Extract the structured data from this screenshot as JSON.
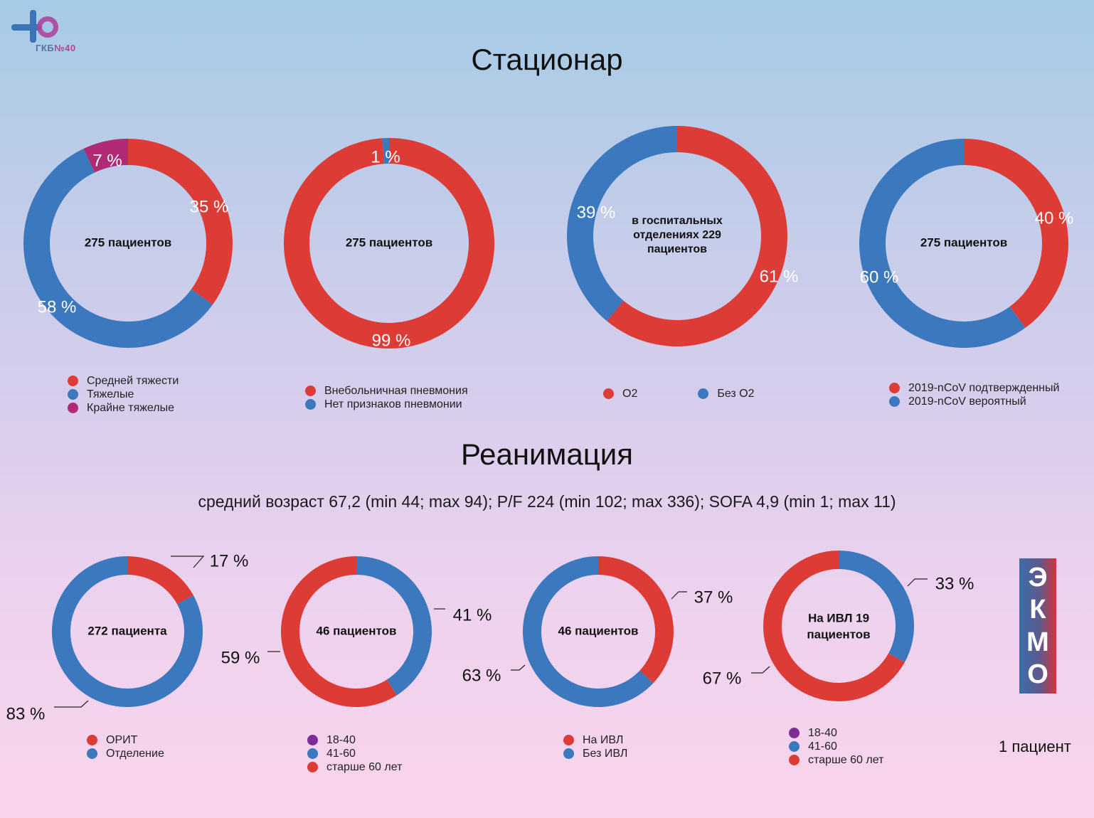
{
  "logo": {
    "text": "ГКБ",
    "number": "№40"
  },
  "colors": {
    "red": "#dd3c36",
    "blue": "#3b78bd",
    "magenta": "#b12a76",
    "purple": "#7c2d96"
  },
  "sections": {
    "inpatient_title": "Стационар",
    "icu_title": "Реанимация",
    "icu_stats": "средний возраст 67,2 (min 44; max 94); P/F  224  (min 102; max 336); SOFA 4,9 (min 1; max 11)"
  },
  "ekmo": {
    "letters": [
      "Э",
      "К",
      "М",
      "О"
    ],
    "count": "1 пациент"
  },
  "chart_data": [
    {
      "type": "donut",
      "center": "275 пациентов",
      "series": [
        {
          "name": "Средней тяжести",
          "value": 35,
          "color": "#dd3c36",
          "label": "35 %"
        },
        {
          "name": "Тяжелые",
          "value": 58,
          "color": "#3b78bd",
          "label": "58 %"
        },
        {
          "name": "Крайне тяжелые",
          "value": 7,
          "color": "#b12a76",
          "label": "7 %"
        }
      ],
      "legend_items": [
        "Средней тяжести",
        "Тяжелые",
        "Крайне тяжелые"
      ]
    },
    {
      "type": "donut",
      "center": "275 пациентов",
      "series": [
        {
          "name": "Внебольничная пневмония",
          "value": 99,
          "color": "#dd3c36",
          "label": "99 %"
        },
        {
          "name": "Нет признаков пневмонии",
          "value": 1,
          "color": "#3b78bd",
          "label": "1 %"
        }
      ],
      "legend_items": [
        "Внебольничная пневмония",
        "Нет признаков пневмонии"
      ]
    },
    {
      "type": "donut",
      "center": "в госпитальных отделениях 229 пациентов",
      "series": [
        {
          "name": "O2",
          "value": 61,
          "color": "#dd3c36",
          "label": "61 %"
        },
        {
          "name": "Без O2",
          "value": 39,
          "color": "#3b78bd",
          "label": "39 %"
        }
      ],
      "legend_items": [
        "O2",
        "Без O2"
      ]
    },
    {
      "type": "donut",
      "center": "275 пациентов",
      "series": [
        {
          "name": "2019-nCoV подтвержденный",
          "value": 40,
          "color": "#dd3c36",
          "label": "40 %"
        },
        {
          "name": "2019-nCoV вероятный",
          "value": 60,
          "color": "#3b78bd",
          "label": "60 %"
        }
      ],
      "legend_items": [
        "2019-nCoV подтвержденный",
        "2019-nCoV вероятный"
      ]
    },
    {
      "type": "donut",
      "center": "272 пациента",
      "series": [
        {
          "name": "ОРИТ",
          "value": 17,
          "color": "#dd3c36",
          "label": "17 %"
        },
        {
          "name": "Отделение",
          "value": 83,
          "color": "#3b78bd",
          "label": "83 %"
        }
      ],
      "legend_items": [
        "ОРИТ",
        "Отделение"
      ]
    },
    {
      "type": "donut",
      "center": "46 пациентов",
      "series": [
        {
          "name": "18-40",
          "value": 0,
          "color": "#7c2d96",
          "label": ""
        },
        {
          "name": "41-60",
          "value": 41,
          "color": "#3b78bd",
          "label": "41 %"
        },
        {
          "name": "старше 60 лет",
          "value": 59,
          "color": "#dd3c36",
          "label": "59 %"
        }
      ],
      "legend_items": [
        "18-40",
        "41-60",
        "старше 60 лет"
      ]
    },
    {
      "type": "donut",
      "center": "46 пациентов",
      "series": [
        {
          "name": "На ИВЛ",
          "value": 37,
          "color": "#dd3c36",
          "label": "37 %"
        },
        {
          "name": "Без ИВЛ",
          "value": 63,
          "color": "#3b78bd",
          "label": "63 %"
        }
      ],
      "legend_items": [
        "На ИВЛ",
        "Без ИВЛ"
      ]
    },
    {
      "type": "donut",
      "center": "На ИВЛ 19 пациентов",
      "series": [
        {
          "name": "18-40",
          "value": 0,
          "color": "#7c2d96",
          "label": ""
        },
        {
          "name": "41-60",
          "value": 33,
          "color": "#3b78bd",
          "label": "33 %"
        },
        {
          "name": "старше 60 лет",
          "value": 67,
          "color": "#dd3c36",
          "label": "67 %"
        }
      ],
      "legend_items": [
        "18-40",
        "41-60",
        "старше 60 лет"
      ]
    }
  ]
}
